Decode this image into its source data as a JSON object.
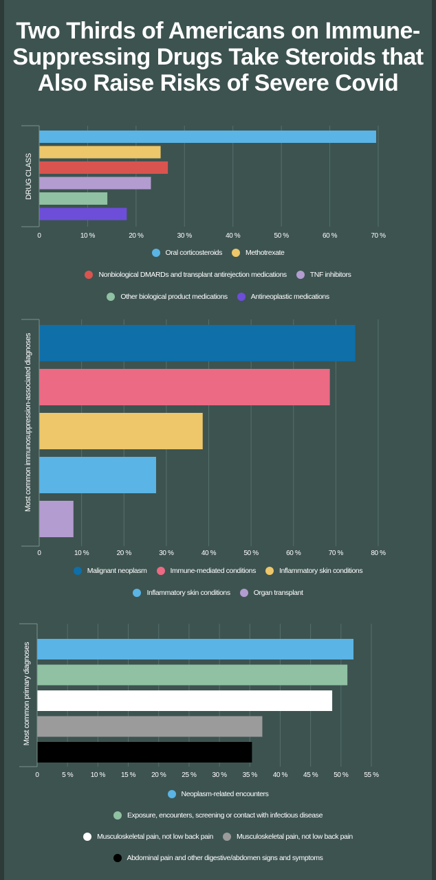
{
  "title": "Two Thirds of Americans on Immune-Suppressing Drugs Take Steroids that Also Raise Risks of Severe Covid",
  "chart_data": [
    {
      "type": "bar",
      "orientation": "horizontal",
      "ylabel": "DRUG CLASS",
      "xlim": [
        0,
        70
      ],
      "ticks": [
        0,
        10,
        20,
        30,
        40,
        50,
        60,
        70
      ],
      "tick_labels": [
        "0",
        "10 %",
        "20 %",
        "30 %",
        "40 %",
        "50 %",
        "60 %",
        "70 %"
      ],
      "grid": true,
      "legend_position": "bottom",
      "series": [
        {
          "name": "Oral corticosteroids",
          "value": 69.5,
          "color": "#5ab4e5"
        },
        {
          "name": "Methotrexate",
          "value": 25,
          "color": "#edc76a"
        },
        {
          "name": "Nonbiological DMARDs and transplant antirejection medications",
          "value": 26.5,
          "color": "#d9544f"
        },
        {
          "name": "TNF inhibitors",
          "value": 23,
          "color": "#b39cd0"
        },
        {
          "name": "Other biological product medications",
          "value": 14,
          "color": "#8fc1a2"
        },
        {
          "name": "Antineoplastic medications",
          "value": 18,
          "color": "#6c4ed8"
        }
      ]
    },
    {
      "type": "bar",
      "orientation": "horizontal",
      "ylabel": "Most common immunosuppression-associated diagnoses",
      "xlim": [
        0,
        80
      ],
      "ticks": [
        0,
        10,
        20,
        30,
        40,
        50,
        60,
        70,
        80
      ],
      "tick_labels": [
        "0",
        "10 %",
        "20 %",
        "30 %",
        "40 %",
        "50 %",
        "60 %",
        "70 %",
        "80 %"
      ],
      "grid": true,
      "legend_position": "bottom",
      "series": [
        {
          "name": "Malignant neoplasm",
          "value": 74.5,
          "color": "#0f6fa8"
        },
        {
          "name": "Immune-mediated conditions",
          "value": 68.5,
          "color": "#ec6a83"
        },
        {
          "name": "Inflammatory skin conditions",
          "value": 38.5,
          "color": "#edc76a"
        },
        {
          "name": "Inflammatory skin conditions",
          "value": 27.5,
          "color": "#5ab4e5"
        },
        {
          "name": "Organ transplant",
          "value": 8,
          "color": "#b39cd0"
        }
      ]
    },
    {
      "type": "bar",
      "orientation": "horizontal",
      "ylabel": "Most common primary diagnoses",
      "xlim": [
        0,
        55
      ],
      "ticks": [
        0,
        5,
        10,
        15,
        20,
        25,
        30,
        35,
        40,
        45,
        50,
        55
      ],
      "tick_labels": [
        "0",
        "5 %",
        "10 %",
        "15 %",
        "20 %",
        "25 %",
        "30 %",
        "35 %",
        "40 %",
        "45 %",
        "50 %",
        "55 %"
      ],
      "grid": true,
      "legend_position": "bottom",
      "series": [
        {
          "name": "Neoplasm-related encounters",
          "value": 52,
          "color": "#5ab4e5"
        },
        {
          "name": "Exposure, encounters, screening or contact with infectious disease",
          "value": 51,
          "color": "#8fc1a2"
        },
        {
          "name": "Musculoskeletal pain, not low back pain",
          "value": 48.5,
          "color": "#ffffff"
        },
        {
          "name": "Musculoskeletal pain, not low back pain",
          "value": 37,
          "color": "#9b9b9b"
        },
        {
          "name": "Abdominal pain and other digestive/abdomen signs and symptoms",
          "value": 35.3,
          "color": "#000000"
        }
      ]
    }
  ]
}
